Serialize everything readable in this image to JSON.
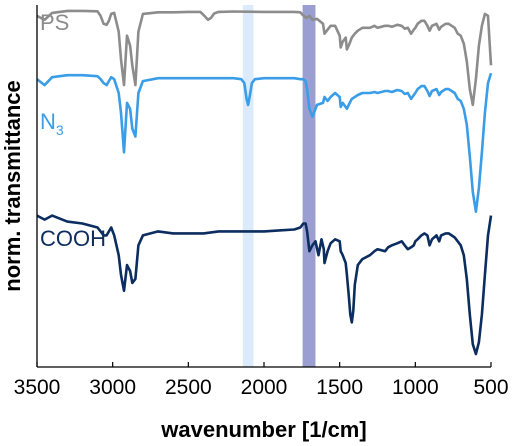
{
  "chart_data": {
    "type": "line",
    "xlabel": "wavenumber [1/cm]",
    "ylabel": "norm. transmittance",
    "xlim": [
      3500,
      500
    ],
    "x_reversed": true,
    "x_ticks": [
      "3500",
      "3000",
      "2500",
      "2000",
      "1500",
      "1000",
      "500"
    ],
    "grid": false,
    "highlight_bands": [
      {
        "from": 2140,
        "to": 2070,
        "color": "#dcebfb"
      },
      {
        "from": 1745,
        "to": 1660,
        "color": "#9a9ed0"
      }
    ],
    "series": [
      {
        "name": "PS",
        "subscript": "",
        "color": "#8c8c8c",
        "offset": 0.78,
        "x": [
          3500,
          3450,
          3400,
          3300,
          3200,
          3100,
          3080,
          3060,
          3040,
          3025,
          3010,
          2990,
          2960,
          2945,
          2925,
          2905,
          2885,
          2870,
          2850,
          2830,
          2800,
          2700,
          2600,
          2500,
          2420,
          2400,
          2370,
          2350,
          2330,
          2300,
          2200,
          2000,
          1900,
          1800,
          1760,
          1745,
          1720,
          1700,
          1680,
          1650,
          1610,
          1600,
          1580,
          1560,
          1530,
          1500,
          1493,
          1480,
          1460,
          1452,
          1440,
          1420,
          1400,
          1380,
          1350,
          1300,
          1270,
          1250,
          1200,
          1180,
          1155,
          1120,
          1090,
          1070,
          1050,
          1028,
          1010,
          1000,
          985,
          960,
          940,
          920,
          906,
          890,
          860,
          842,
          830,
          800,
          780,
          760,
          740,
          720,
          700,
          680,
          660,
          640,
          620,
          600,
          580,
          560,
          540,
          520,
          500
        ],
        "y": [
          0.95,
          0.93,
          0.965,
          0.975,
          0.975,
          0.973,
          0.95,
          0.91,
          0.905,
          0.925,
          0.96,
          0.965,
          0.87,
          0.73,
          0.6,
          0.85,
          0.8,
          0.7,
          0.6,
          0.87,
          0.96,
          0.968,
          0.968,
          0.97,
          0.97,
          0.955,
          0.93,
          0.94,
          0.962,
          0.97,
          0.972,
          0.97,
          0.97,
          0.97,
          0.968,
          0.955,
          0.94,
          0.95,
          0.93,
          0.935,
          0.91,
          0.86,
          0.88,
          0.9,
          0.9,
          0.85,
          0.79,
          0.82,
          0.84,
          0.78,
          0.8,
          0.84,
          0.86,
          0.875,
          0.89,
          0.89,
          0.9,
          0.89,
          0.9,
          0.9,
          0.895,
          0.905,
          0.9,
          0.885,
          0.89,
          0.86,
          0.88,
          0.89,
          0.91,
          0.925,
          0.925,
          0.9,
          0.875,
          0.9,
          0.91,
          0.88,
          0.895,
          0.91,
          0.91,
          0.9,
          0.89,
          0.86,
          0.85,
          0.81,
          0.72,
          0.58,
          0.5,
          0.63,
          0.8,
          0.9,
          0.96,
          0.95,
          0.7
        ]
      },
      {
        "name": "N",
        "subscript": "3",
        "color": "#3a9de8",
        "offset": 0.44,
        "x": [
          3500,
          3450,
          3400,
          3300,
          3200,
          3100,
          3080,
          3060,
          3040,
          3025,
          3010,
          2990,
          2960,
          2945,
          2925,
          2905,
          2885,
          2870,
          2850,
          2830,
          2800,
          2700,
          2600,
          2500,
          2400,
          2300,
          2200,
          2150,
          2130,
          2115,
          2105,
          2095,
          2080,
          2060,
          2000,
          1900,
          1800,
          1760,
          1740,
          1725,
          1715,
          1700,
          1680,
          1650,
          1610,
          1600,
          1580,
          1560,
          1530,
          1500,
          1493,
          1480,
          1452,
          1440,
          1420,
          1400,
          1380,
          1350,
          1300,
          1270,
          1250,
          1200,
          1180,
          1155,
          1120,
          1090,
          1070,
          1050,
          1028,
          1010,
          1000,
          985,
          960,
          940,
          920,
          906,
          890,
          860,
          842,
          830,
          800,
          780,
          760,
          740,
          720,
          700,
          680,
          660,
          640,
          620,
          600,
          580,
          560,
          540,
          520,
          500
        ],
        "y": [
          0.97,
          0.94,
          0.98,
          0.99,
          0.99,
          0.985,
          0.97,
          0.95,
          0.94,
          0.96,
          0.98,
          0.97,
          0.9,
          0.8,
          0.6,
          0.85,
          0.82,
          0.72,
          0.68,
          0.9,
          0.96,
          0.975,
          0.975,
          0.975,
          0.975,
          0.975,
          0.975,
          0.97,
          0.95,
          0.87,
          0.84,
          0.88,
          0.95,
          0.97,
          0.975,
          0.975,
          0.975,
          0.97,
          0.97,
          0.96,
          0.92,
          0.82,
          0.78,
          0.84,
          0.85,
          0.88,
          0.86,
          0.88,
          0.9,
          0.88,
          0.83,
          0.85,
          0.82,
          0.84,
          0.87,
          0.88,
          0.89,
          0.9,
          0.9,
          0.905,
          0.9,
          0.91,
          0.91,
          0.905,
          0.915,
          0.91,
          0.895,
          0.9,
          0.87,
          0.89,
          0.9,
          0.92,
          0.935,
          0.935,
          0.91,
          0.885,
          0.91,
          0.92,
          0.89,
          0.905,
          0.92,
          0.92,
          0.91,
          0.9,
          0.87,
          0.86,
          0.82,
          0.74,
          0.58,
          0.4,
          0.3,
          0.42,
          0.6,
          0.8,
          0.95,
          1.0
        ]
      },
      {
        "name": "COOH",
        "subscript": "",
        "color": "#0b2d5f",
        "offset": 0.02,
        "x": [
          3500,
          3450,
          3400,
          3300,
          3200,
          3100,
          3080,
          3060,
          3040,
          3025,
          3010,
          2990,
          2960,
          2945,
          2925,
          2905,
          2885,
          2870,
          2850,
          2830,
          2800,
          2700,
          2600,
          2500,
          2400,
          2300,
          2200,
          2100,
          2000,
          1900,
          1800,
          1760,
          1740,
          1725,
          1715,
          1700,
          1680,
          1660,
          1640,
          1620,
          1605,
          1600,
          1580,
          1560,
          1530,
          1500,
          1493,
          1480,
          1460,
          1452,
          1440,
          1430,
          1420,
          1410,
          1400,
          1380,
          1350,
          1300,
          1270,
          1250,
          1200,
          1180,
          1155,
          1120,
          1090,
          1070,
          1050,
          1028,
          1010,
          1000,
          985,
          960,
          940,
          920,
          906,
          890,
          860,
          842,
          830,
          800,
          780,
          760,
          740,
          720,
          700,
          680,
          660,
          640,
          620,
          600,
          580,
          560,
          540,
          520,
          500
        ],
        "y": [
          0.7,
          0.68,
          0.7,
          0.67,
          0.66,
          0.64,
          0.62,
          0.6,
          0.6,
          0.62,
          0.64,
          0.6,
          0.5,
          0.4,
          0.32,
          0.45,
          0.42,
          0.36,
          0.38,
          0.55,
          0.6,
          0.62,
          0.61,
          0.61,
          0.61,
          0.62,
          0.62,
          0.62,
          0.62,
          0.625,
          0.63,
          0.64,
          0.66,
          0.66,
          0.62,
          0.52,
          0.55,
          0.57,
          0.5,
          0.58,
          0.53,
          0.46,
          0.52,
          0.56,
          0.58,
          0.57,
          0.52,
          0.5,
          0.46,
          0.4,
          0.3,
          0.2,
          0.16,
          0.22,
          0.35,
          0.45,
          0.48,
          0.5,
          0.52,
          0.53,
          0.52,
          0.54,
          0.55,
          0.56,
          0.57,
          0.55,
          0.53,
          0.54,
          0.55,
          0.57,
          0.58,
          0.6,
          0.61,
          0.6,
          0.55,
          0.58,
          0.6,
          0.57,
          0.6,
          0.61,
          0.61,
          0.6,
          0.59,
          0.57,
          0.55,
          0.5,
          0.38,
          0.2,
          0.05,
          0.0,
          0.06,
          0.2,
          0.4,
          0.6,
          0.7
        ]
      }
    ]
  }
}
